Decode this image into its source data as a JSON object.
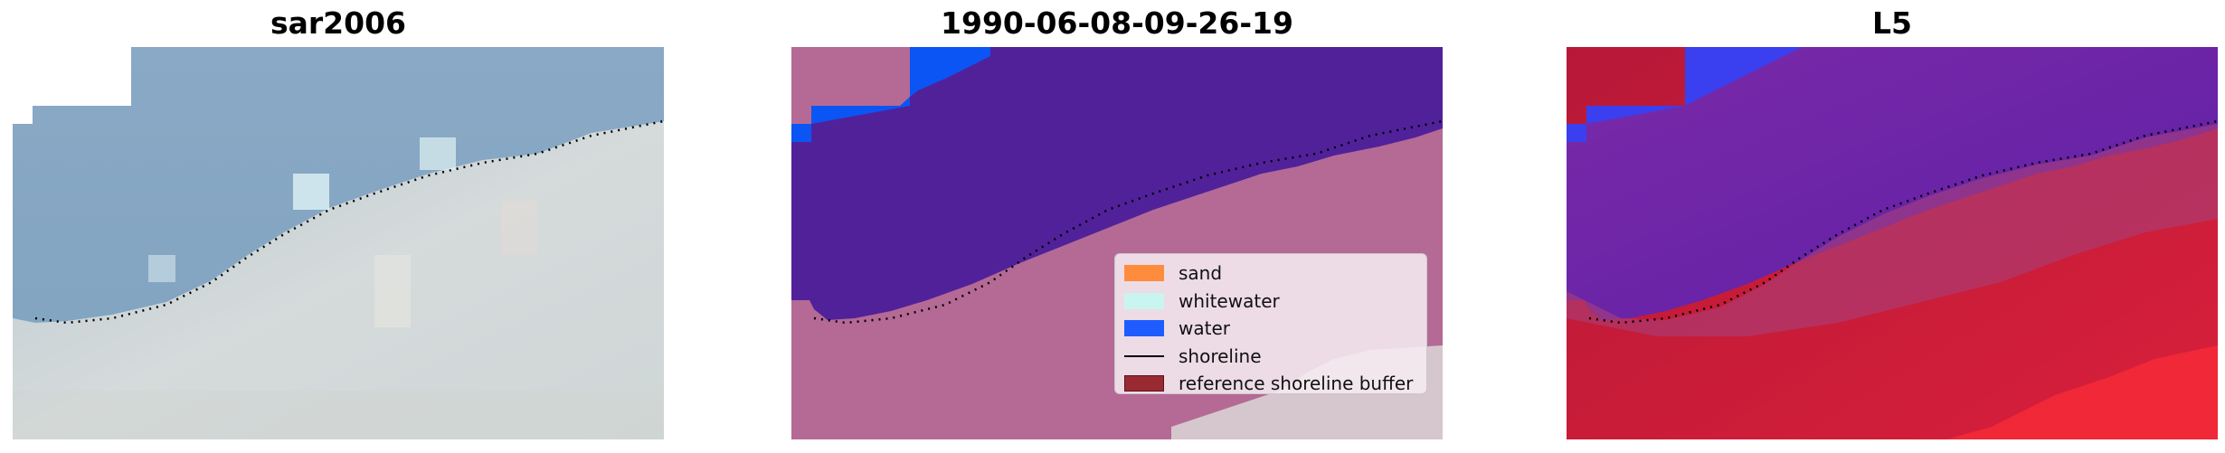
{
  "panels": [
    {
      "title": "sar2006",
      "image": "rgb-satellite-image"
    },
    {
      "title": "1990-06-08-09-26-19",
      "image": "classified-satellite-image"
    },
    {
      "title": "L5",
      "image": "false-color-satellite-image"
    }
  ],
  "legend": {
    "items": [
      {
        "label": "sand",
        "color": "#ff8c3c",
        "kind": "patch"
      },
      {
        "label": "whitewater",
        "color": "#c8f5f0",
        "kind": "patch"
      },
      {
        "label": "water",
        "color": "#1e5cff",
        "kind": "patch"
      },
      {
        "label": "shoreline",
        "color": "#000000",
        "kind": "line"
      },
      {
        "label": "reference shoreline buffer",
        "color": "#9a2a32",
        "kind": "patch"
      }
    ]
  },
  "colors": {
    "sar_water": "#86a8c4",
    "sar_land": "#cbd6d8",
    "class_water_purple": "#51219a",
    "class_water_blue": "#0c55f5",
    "class_land_pink": "#b46a94",
    "l5_purple": "#6a2aa8",
    "l5_red": "#c8183a",
    "l5_blue": "#3a40f0"
  }
}
